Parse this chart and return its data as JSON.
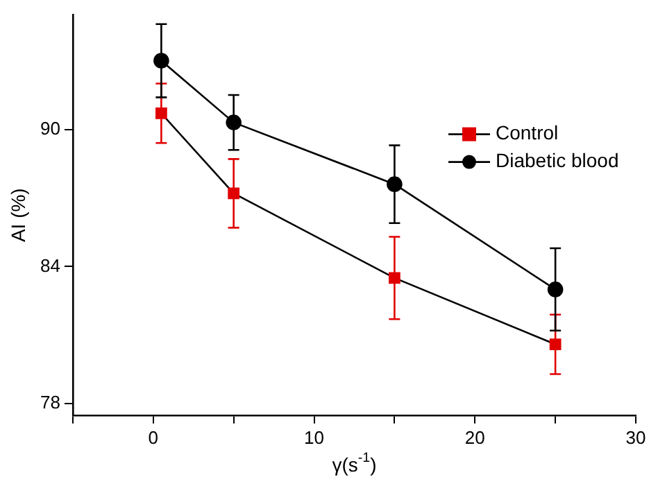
{
  "chart_data": {
    "type": "line",
    "xlabel": "γ(s$^{-1}$)",
    "ylabel": "AI (%)",
    "xlim": [
      -5,
      30
    ],
    "xticks": [
      {
        "value": -5,
        "label": null
      },
      0,
      {
        "value": 5,
        "label": null
      },
      10,
      {
        "value": 15,
        "label": null
      },
      20,
      {
        "value": 25,
        "label": null
      },
      30
    ],
    "ylim": [
      77.5,
      95
    ],
    "yticks": [
      78,
      84,
      90
    ],
    "grid": false,
    "legend": "top right",
    "line_style": "solid",
    "series": [
      {
        "name": "Control",
        "color": "#e00000",
        "marker": "square",
        "x": [
          0.5,
          5,
          15,
          25
        ],
        "values": [
          90.7,
          87.2,
          83.5,
          80.6
        ],
        "errors": [
          1.3,
          1.5,
          1.8,
          1.3
        ]
      },
      {
        "name": "Diabetic blood",
        "color": "#000000",
        "marker": "circle",
        "x": [
          0.5,
          5,
          15,
          25
        ],
        "values": [
          93.0,
          90.3,
          87.6,
          83.0
        ],
        "errors": [
          1.6,
          1.2,
          1.7,
          1.8
        ]
      }
    ]
  }
}
